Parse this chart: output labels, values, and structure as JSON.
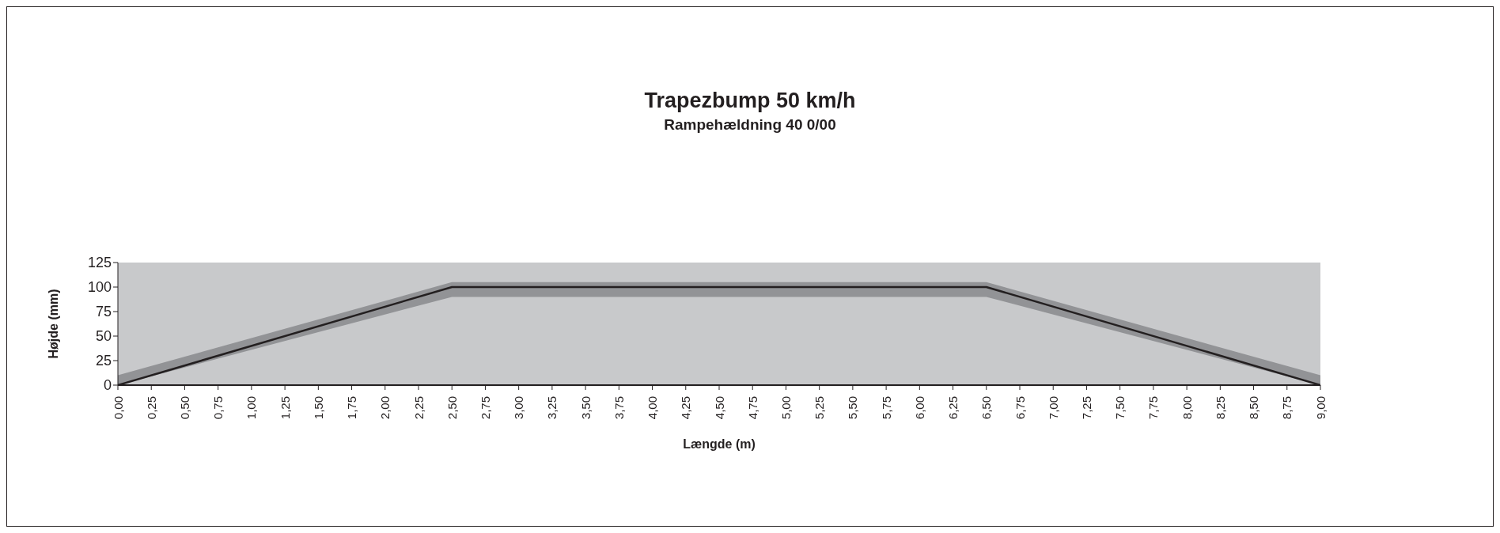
{
  "chart_data": {
    "type": "line",
    "title": "Trapezbump 50 km/h",
    "subtitle": "Rampehældning 40 0/00",
    "xlabel": "Længde (m)",
    "ylabel": "Højde (mm)",
    "x": [
      0,
      2.5,
      6.5,
      9
    ],
    "series": [
      {
        "color": "#231f20",
        "values": [
          0,
          100,
          100,
          0
        ],
        "lower": [
          0,
          90,
          90,
          0
        ],
        "upper": [
          10,
          105,
          105,
          10
        ]
      }
    ],
    "xlim": [
      0,
      9
    ],
    "xticks": [
      {
        "value": 0,
        "label": "0,00"
      },
      {
        "value": 0.25,
        "label": "0,25"
      },
      {
        "value": 0.5,
        "label": "0,50"
      },
      {
        "value": 0.75,
        "label": "0,75"
      },
      {
        "value": 1,
        "label": "1,00"
      },
      {
        "value": 1.25,
        "label": "1,25"
      },
      {
        "value": 1.5,
        "label": "1,50"
      },
      {
        "value": 1.75,
        "label": "1,75"
      },
      {
        "value": 2,
        "label": "2,00"
      },
      {
        "value": 2.25,
        "label": "2,25"
      },
      {
        "value": 2.5,
        "label": "2,50"
      },
      {
        "value": 2.75,
        "label": "2,75"
      },
      {
        "value": 3,
        "label": "3,00"
      },
      {
        "value": 3.25,
        "label": "3,25"
      },
      {
        "value": 3.5,
        "label": "3,50"
      },
      {
        "value": 3.75,
        "label": "3,75"
      },
      {
        "value": 4,
        "label": "4,00"
      },
      {
        "value": 4.25,
        "label": "4,25"
      },
      {
        "value": 4.5,
        "label": "4,50"
      },
      {
        "value": 4.75,
        "label": "4,75"
      },
      {
        "value": 5,
        "label": "5,00"
      },
      {
        "value": 5.25,
        "label": "5,25"
      },
      {
        "value": 5.5,
        "label": "5,50"
      },
      {
        "value": 5.75,
        "label": "5,75"
      },
      {
        "value": 6,
        "label": "6,00"
      },
      {
        "value": 6.25,
        "label": "6,25"
      },
      {
        "value": 6.5,
        "label": "6,50"
      },
      {
        "value": 6.75,
        "label": "6,75"
      },
      {
        "value": 7,
        "label": "7,00"
      },
      {
        "value": 7.25,
        "label": "7,25"
      },
      {
        "value": 7.5,
        "label": "7,50"
      },
      {
        "value": 7.75,
        "label": "7,75"
      },
      {
        "value": 8,
        "label": "8,00"
      },
      {
        "value": 8.25,
        "label": "8,25"
      },
      {
        "value": 8.5,
        "label": "8,50"
      },
      {
        "value": 8.75,
        "label": "8,75"
      },
      {
        "value": 9,
        "label": "9,00"
      }
    ],
    "ylim": [
      0,
      125
    ],
    "yticks": [
      0,
      25,
      50,
      75,
      100,
      125
    ],
    "marker": "none",
    "line_style": "solid"
  }
}
